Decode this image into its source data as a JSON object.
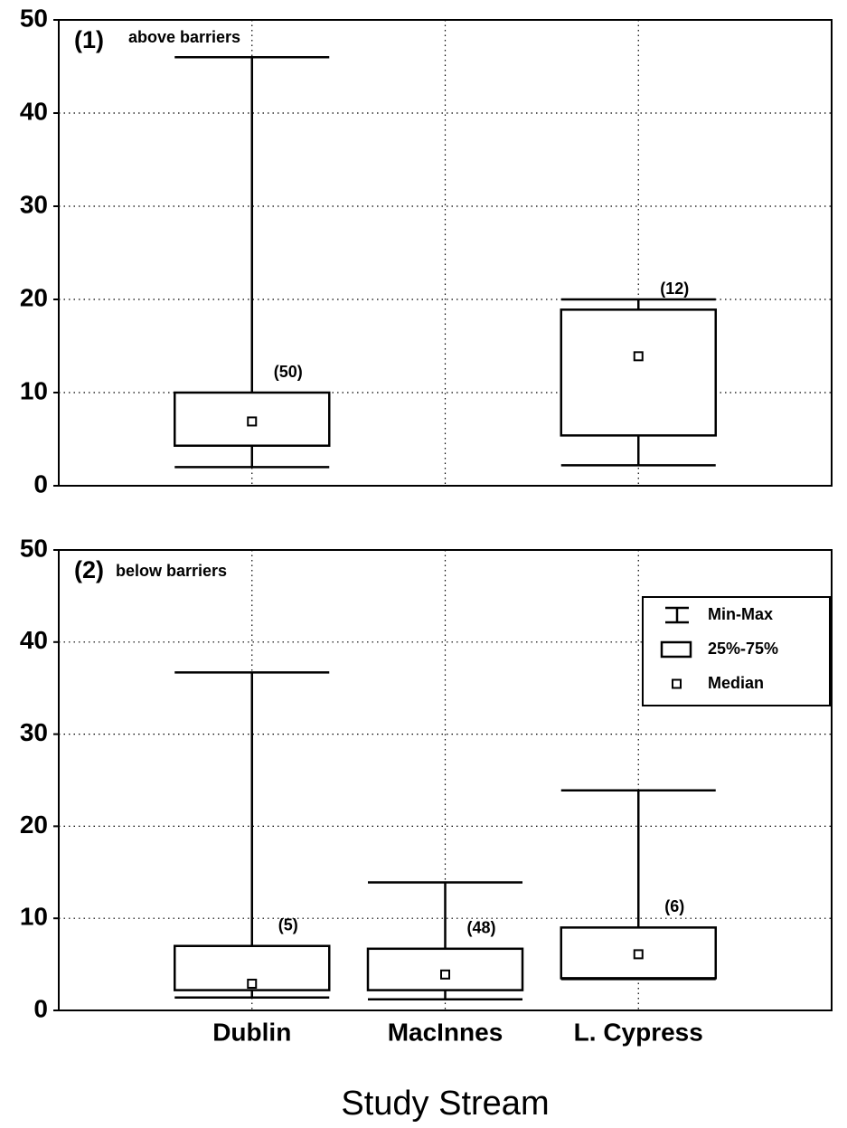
{
  "chart_data": [
    {
      "type": "box",
      "panel_label": "(1)",
      "subtitle": "above barriers",
      "categories": [
        null,
        null,
        null
      ],
      "min": [
        2,
        null,
        2.2
      ],
      "q1": [
        4.3,
        null,
        5.4
      ],
      "median": [
        6.9,
        null,
        13.9
      ],
      "q3": [
        10,
        null,
        18.9
      ],
      "max": [
        46,
        null,
        20
      ],
      "counts": [
        "(50)",
        null,
        "(12)"
      ],
      "ylim": [
        0,
        50
      ],
      "yticks": [
        0,
        10,
        20,
        30,
        40,
        50
      ],
      "grid": true,
      "color": "#000000"
    },
    {
      "type": "box",
      "panel_label": "(2)",
      "subtitle": "below barriers",
      "categories": [
        "Dublin",
        "MacInnes",
        "L. Cypress"
      ],
      "min": [
        1.4,
        1.2,
        3.4
      ],
      "q1": [
        2.2,
        2.2,
        3.5
      ],
      "median": [
        2.9,
        3.9,
        6.1
      ],
      "q3": [
        7,
        6.7,
        9
      ],
      "max": [
        36.7,
        13.9,
        23.9
      ],
      "counts": [
        "(5)",
        "(48)",
        "(6)"
      ],
      "ylim": [
        0,
        50
      ],
      "yticks": [
        0,
        10,
        20,
        30,
        40,
        50
      ],
      "grid": true,
      "color": "#000000",
      "xlabel": "Study Stream",
      "legend": "upper right",
      "legend_labels": [
        "Min-Max",
        "25%-75%",
        "Median"
      ]
    }
  ]
}
